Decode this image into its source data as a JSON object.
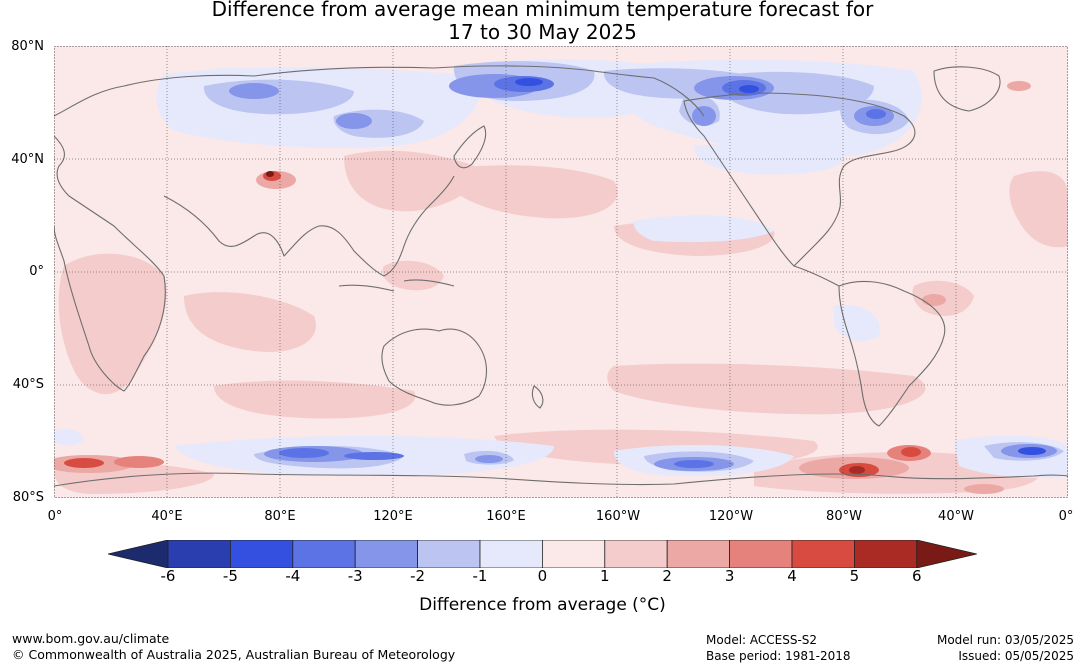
{
  "title_line1": "Difference from average mean minimum temperature forecast for",
  "title_line2": "17 to 30 May 2025",
  "lat_labels": [
    "80°N",
    "40°N",
    "0°",
    "40°S",
    "80°S"
  ],
  "lon_labels": [
    "0°",
    "40°E",
    "80°E",
    "120°E",
    "160°E",
    "160°W",
    "120°W",
    "80°W",
    "40°W",
    "0°"
  ],
  "colorbar": {
    "ticks": [
      "-6",
      "-5",
      "-4",
      "-3",
      "-2",
      "-1",
      "0",
      "1",
      "2",
      "3",
      "4",
      "5",
      "6"
    ],
    "colors": [
      "#1c2a6e",
      "#2a3eb0",
      "#3450e0",
      "#5b73e4",
      "#8495ea",
      "#bcc5f2",
      "#e6e9fb",
      "#fbe8e8",
      "#f4cccc",
      "#eba8a5",
      "#e5827c",
      "#d84b40",
      "#aa2a24",
      "#7a1a16"
    ],
    "label": "Difference from average (°C)"
  },
  "footer": {
    "website": "www.bom.gov.au/climate",
    "copyright": "© Commonwealth of Australia 2025, Australian Bureau of Meteorology",
    "model": "Model: ACCESS-S2",
    "base_period": "Base period: 1981-2018",
    "model_run": "Model run: 03/05/2025",
    "issued": "Issued: 05/05/2025"
  }
}
